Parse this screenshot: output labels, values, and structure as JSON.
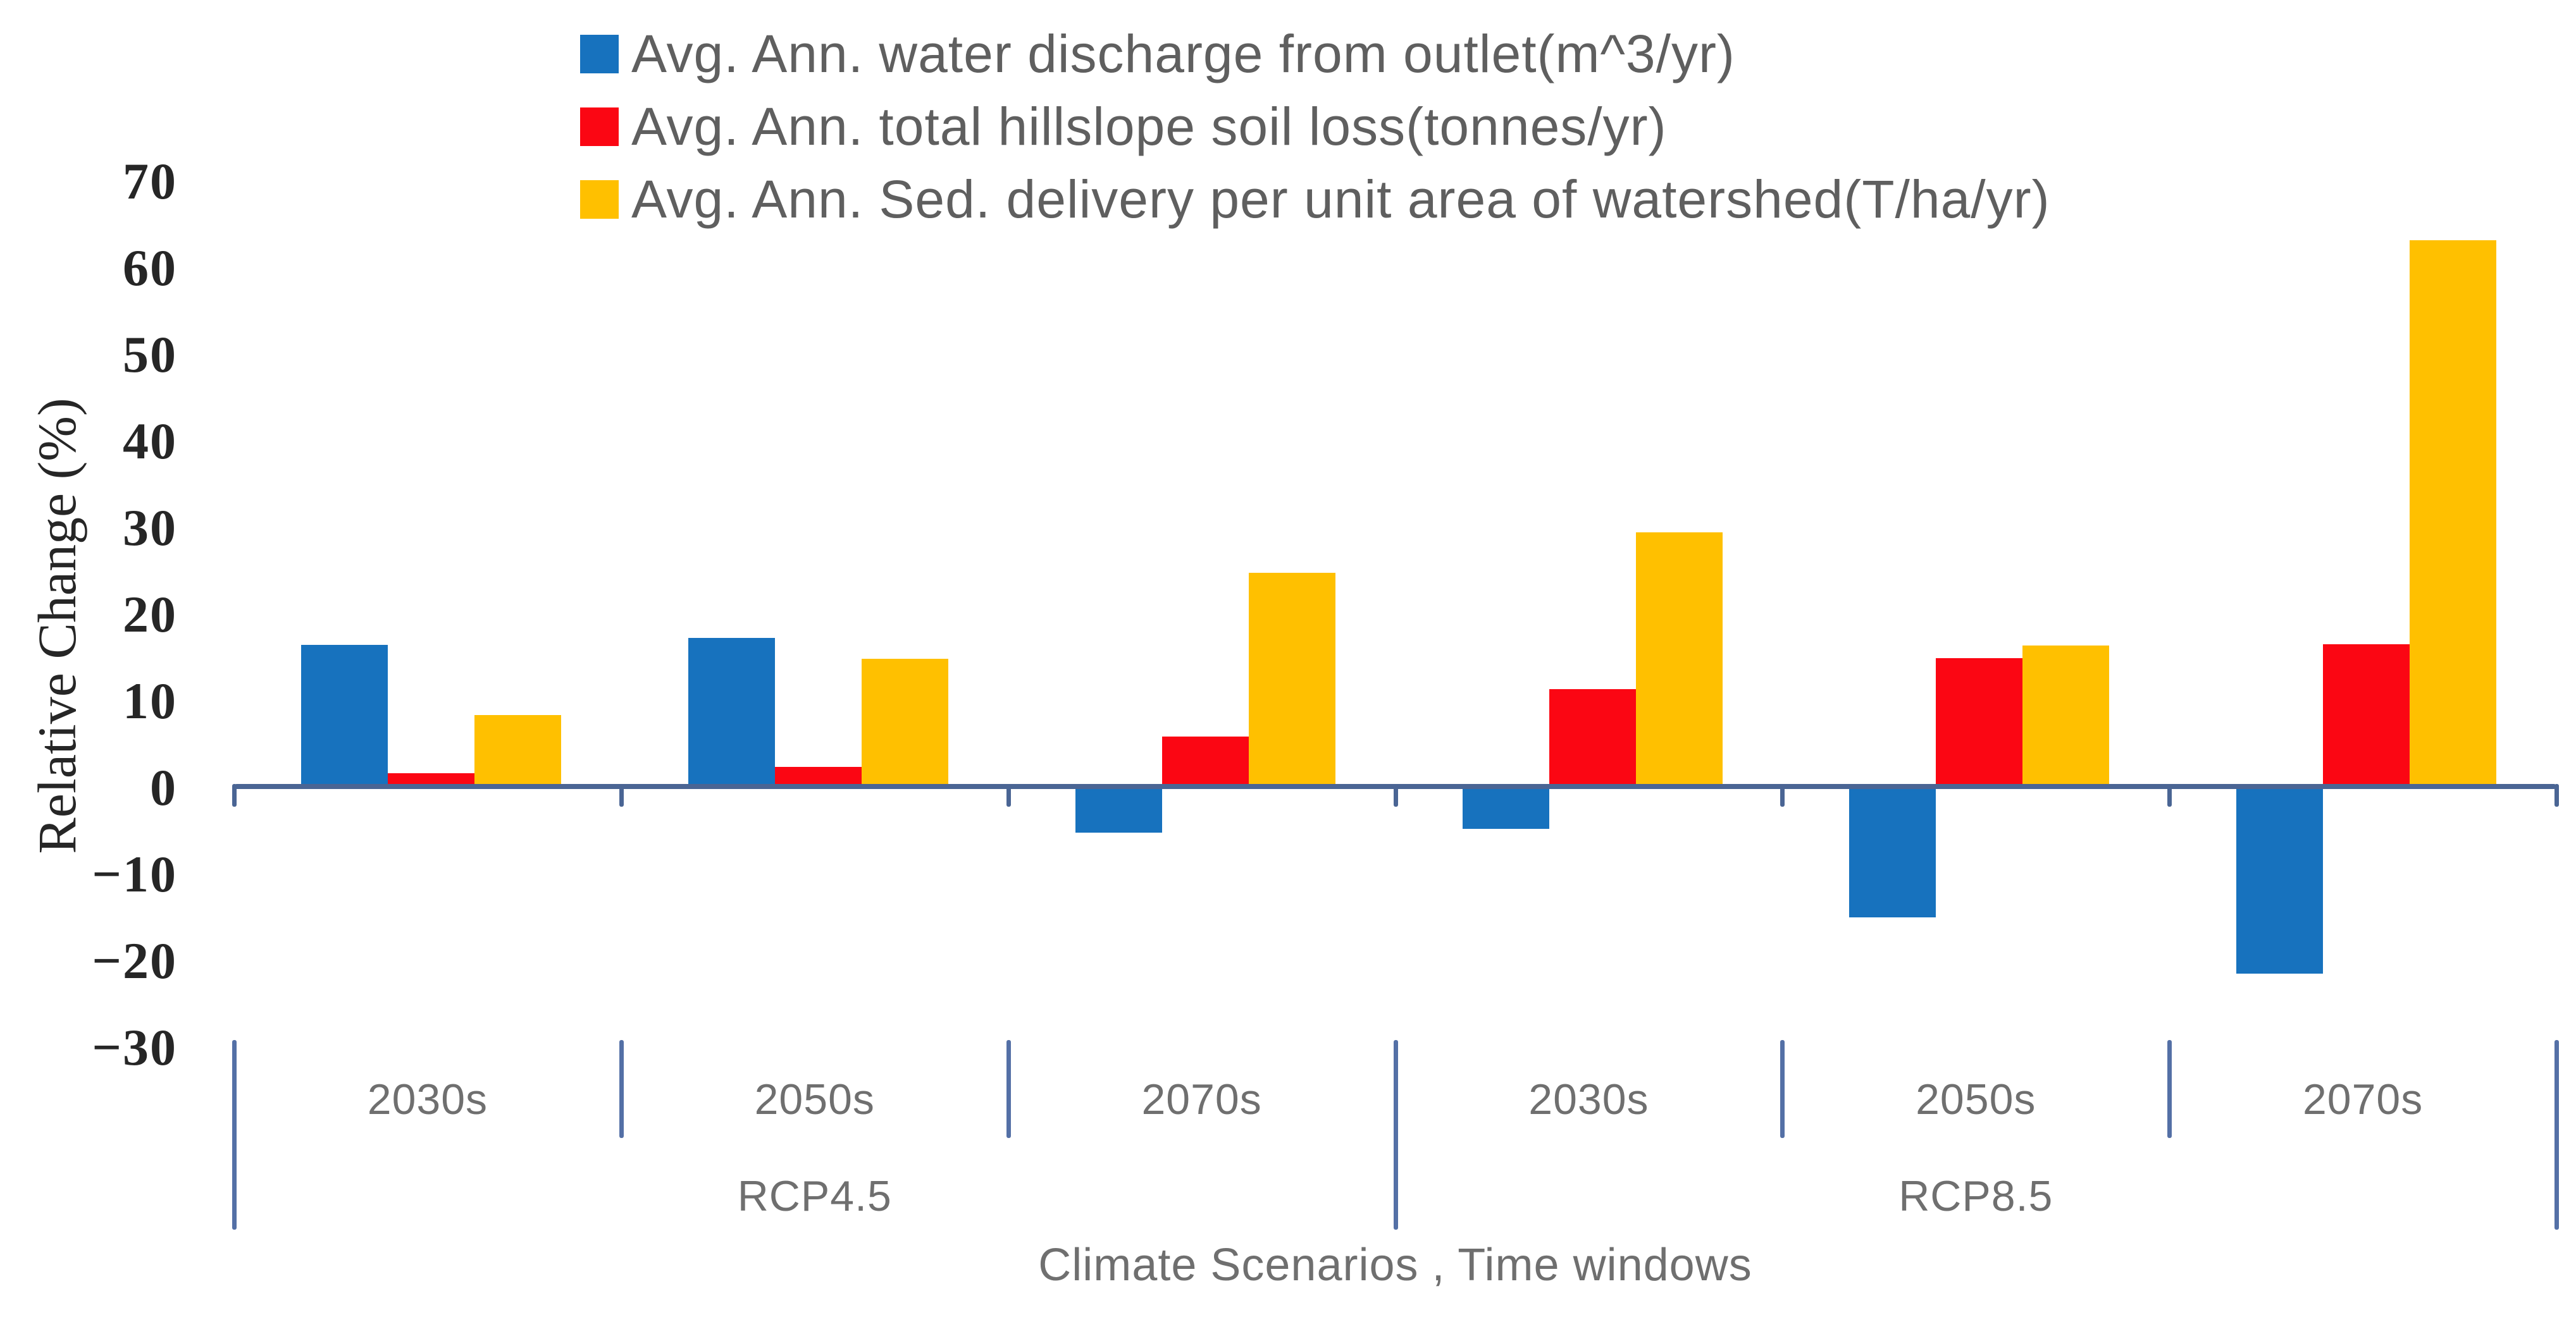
{
  "chart_data": {
    "type": "bar",
    "title": "",
    "xlabel": "Climate Scenarios , Time windows",
    "ylabel": "Relative Change (%)",
    "ylim": [
      -30,
      70
    ],
    "yticks": [
      70,
      60,
      50,
      40,
      30,
      20,
      10,
      0,
      -10,
      -20,
      -30
    ],
    "grid": false,
    "legend_position": "top-left",
    "categories": [
      "2030s",
      "2050s",
      "2070s",
      "2030s",
      "2050s",
      "2070s"
    ],
    "category_groups": [
      {
        "label": "RCP4.5",
        "start": 0,
        "end": 3
      },
      {
        "label": "RCP8.5",
        "start": 3,
        "end": 6
      }
    ],
    "series": [
      {
        "name": "Avg. Ann. water discharge from outlet(m^3/yr)",
        "color": "#1772be",
        "values": [
          16.5,
          17.3,
          -5.0,
          -4.6,
          -14.8,
          -21.3
        ]
      },
      {
        "name": "Avg. Ann. total hillslope soil loss(tonnes/yr)",
        "color": "#fb0613",
        "values": [
          1.7,
          2.4,
          5.9,
          11.4,
          15.0,
          16.6
        ]
      },
      {
        "name": "Avg. Ann. Sed. delivery per unit area of watershed(T/ha/yr)",
        "color": "#ffc000",
        "values": [
          8.4,
          14.9,
          24.8,
          29.5,
          16.4,
          63.2
        ]
      }
    ]
  },
  "colors": {
    "axis_line": "#4a6594",
    "divider_line": "#5470a6",
    "tick_text": "#262626",
    "label_text": "#6f6f6f",
    "legend_text": "#5f5f5f",
    "background": "#ffffff"
  }
}
